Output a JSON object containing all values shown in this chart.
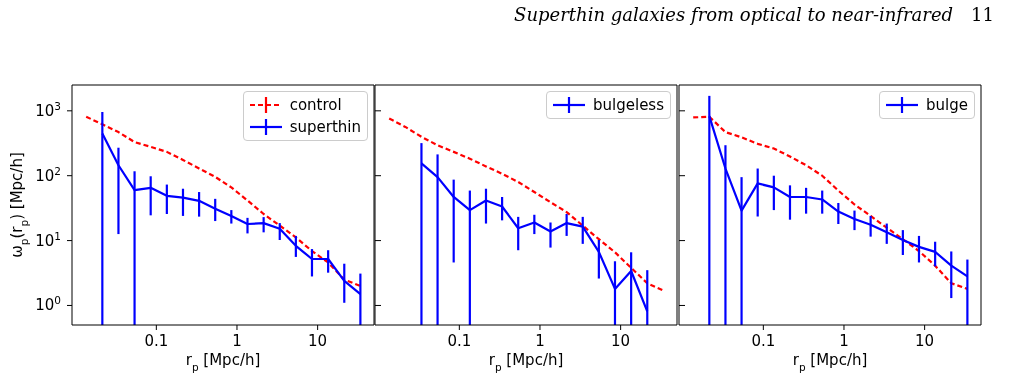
{
  "chart_data": [
    {
      "type": "line",
      "annotations": [
        "Superthin galaxies from optical to near-infrared",
        "11"
      ],
      "xlabel": "r$_{p}$ [Mpc/h]",
      "ylabel": "ω$_{p}$(r$_{p}$) [Mpc/h]",
      "log": "xy",
      "legend": "top right",
      "xlim": [
        0.009,
        50
      ],
      "ylim": [
        0.5,
        2500
      ],
      "xticks": [
        0.1,
        1,
        10
      ],
      "yticks": [
        {
          "value": 1,
          "label": "10$^{0}$"
        },
        {
          "value": 10,
          "label": "10$^{1}$"
        },
        {
          "value": 100,
          "label": "10$^{2}$"
        },
        {
          "value": 1000,
          "label": "10$^{3}$"
        }
      ],
      "x": [
        0.0135,
        0.0214,
        0.0339,
        0.0537,
        0.0851,
        0.135,
        0.214,
        0.339,
        0.537,
        0.851,
        1.35,
        2.14,
        3.39,
        5.37,
        8.51,
        13.5,
        21.4,
        33.9
      ],
      "series": [
        {
          "name": "control",
          "color": "#ff0000",
          "line_style": "dashed",
          "values": [
            810,
            620,
            470,
            330,
            278,
            233,
            175,
            129,
            96,
            66,
            41.5,
            25.7,
            17,
            11.2,
            6.9,
            4.6,
            2.5,
            2.0
          ]
        },
        {
          "name": "superthin",
          "color": "#0000ff",
          "line_style": "solid",
          "values": [
            null,
            447,
            145,
            60,
            65,
            49,
            46,
            41,
            31,
            24,
            18,
            18.6,
            15.2,
            8.3,
            5.2,
            5.2,
            2.4,
            1.5
          ],
          "errors": [
            null,
            [
              0.5,
              960
            ],
            [
              12.6,
              270
            ],
            [
              0.5,
              117
            ],
            [
              24.5,
              98
            ],
            [
              25.7,
              73
            ],
            [
              24,
              63
            ],
            [
              23.4,
              56
            ],
            [
              20,
              44
            ],
            [
              18.3,
              29.5
            ],
            [
              12.9,
              22.4
            ],
            [
              13.4,
              23
            ],
            [
              10.2,
              18.6
            ],
            [
              5.6,
              11.8
            ],
            [
              2.8,
              7.4
            ],
            [
              3.2,
              7.1
            ],
            [
              1.1,
              4.4
            ],
            [
              0.5,
              3.1
            ]
          ]
        }
      ]
    },
    {
      "type": "line",
      "xlabel": "r$_{p}$ [Mpc/h]",
      "log": "xy",
      "legend": "top right",
      "tick_labels": "x",
      "xlim": [
        0.009,
        50
      ],
      "ylim": [
        0.5,
        2500
      ],
      "xticks": [
        0.1,
        1,
        10
      ],
      "yticks": [
        1,
        10,
        100,
        1000
      ],
      "x": [
        0.0135,
        0.0214,
        0.0339,
        0.0537,
        0.0851,
        0.135,
        0.214,
        0.339,
        0.537,
        0.851,
        1.35,
        2.14,
        3.39,
        5.37,
        8.51,
        13.5,
        21.4,
        33.9
      ],
      "series": [
        {
          "color": "#ff0000",
          "line_style": "dashed",
          "values": [
            760,
            565,
            397,
            295,
            233,
            183,
            139,
            107,
            80,
            56,
            39,
            27.5,
            17,
            10.5,
            6.6,
            3.8,
            2.2,
            1.7
          ]
        },
        {
          "name": "bulgeless",
          "color": "#0000ff",
          "line_style": "solid",
          "values": [
            null,
            null,
            155,
            95,
            47,
            29.5,
            41.5,
            33.5,
            15.5,
            19,
            13.8,
            18.6,
            16.4,
            6.7,
            1.8,
            3.4,
            0.81,
            null
          ],
          "errors": [
            null,
            null,
            [
              0.5,
              318
            ],
            [
              0.5,
              213
            ],
            [
              4.6,
              87
            ],
            [
              0.5,
              59
            ],
            [
              18.3,
              63
            ],
            [
              20.5,
              47
            ],
            [
              7.1,
              23.2
            ],
            [
              12.6,
              25
            ],
            [
              7.8,
              19
            ],
            [
              11.8,
              25.7
            ],
            [
              8.9,
              23.2
            ],
            [
              2.6,
              10.2
            ],
            [
              0.5,
              4.8
            ],
            [
              0.5,
              6.6
            ],
            [
              0.5,
              3.5
            ],
            null
          ]
        }
      ]
    },
    {
      "type": "line",
      "xlabel": "r$_{p}$ [Mpc/h]",
      "log": "xy",
      "legend": "top right",
      "tick_labels": "x",
      "xlim": [
        0.009,
        50
      ],
      "ylim": [
        0.5,
        2500
      ],
      "xticks": [
        0.1,
        1,
        10
      ],
      "yticks": [
        1,
        10,
        100,
        1000
      ],
      "x": [
        0.0135,
        0.0214,
        0.0339,
        0.0537,
        0.0851,
        0.135,
        0.214,
        0.339,
        0.537,
        0.851,
        1.35,
        2.14,
        3.39,
        5.37,
        8.51,
        13.5,
        21.4,
        33.9
      ],
      "series": [
        {
          "color": "#ff0000",
          "line_style": "dashed",
          "values": [
            790,
            810,
            470,
            390,
            310,
            262,
            198,
            145,
            100,
            59,
            36,
            24,
            15.8,
            10.5,
            6.9,
            4.1,
            2.2,
            1.8
          ]
        },
        {
          "name": "bulge",
          "color": "#0000ff",
          "line_style": "solid",
          "values": [
            null,
            830,
            129,
            29,
            76,
            66,
            47,
            47,
            43,
            28,
            21.5,
            17.5,
            13.4,
            10.2,
            8.0,
            6.7,
            4.1,
            2.8
          ],
          "errors": [
            null,
            [
              0.5,
              1700
            ],
            [
              0.5,
              295
            ],
            [
              0.5,
              95
            ],
            [
              23.5,
              129
            ],
            [
              29.5,
              100
            ],
            [
              21,
              71
            ],
            [
              26,
              65
            ],
            [
              26,
              59
            ],
            [
              18,
              38
            ],
            [
              14.5,
              29
            ],
            [
              11.5,
              24
            ],
            [
              8.9,
              18.3
            ],
            [
              6.0,
              14.5
            ],
            [
              4.6,
              11.8
            ],
            [
              4.0,
              9.6
            ],
            [
              1.3,
              6.8
            ],
            [
              0.5,
              5.1
            ]
          ]
        }
      ]
    }
  ]
}
